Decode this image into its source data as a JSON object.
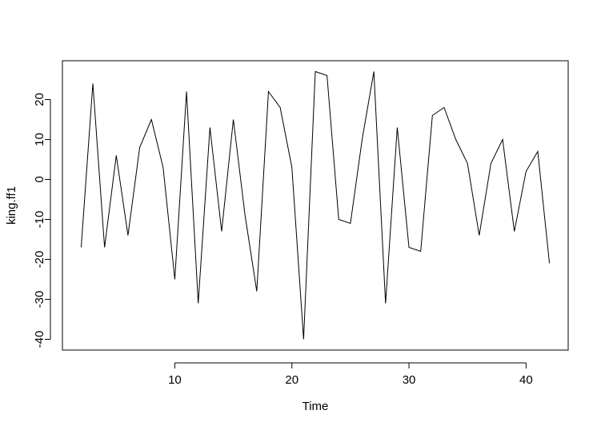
{
  "chart_data": {
    "type": "line",
    "title": "",
    "xlabel": "Time",
    "ylabel": "king.ff1",
    "x": [
      2,
      3,
      4,
      5,
      6,
      7,
      8,
      9,
      10,
      11,
      12,
      13,
      14,
      15,
      16,
      17,
      18,
      19,
      20,
      21,
      22,
      23,
      24,
      25,
      26,
      27,
      28,
      29,
      30,
      31,
      32,
      33,
      34,
      35,
      36,
      37,
      38,
      39,
      40,
      41,
      42
    ],
    "series": [
      {
        "values": [
          -17,
          24,
          -17,
          6,
          -14,
          8,
          15,
          3,
          -25,
          22,
          -31,
          13,
          -13,
          15,
          -9,
          -28,
          22,
          18,
          3,
          -40,
          27,
          26,
          -10,
          -11,
          10,
          27,
          -31,
          13,
          -17,
          -18,
          16,
          18,
          10,
          4,
          -14,
          4,
          10,
          -13,
          2,
          7,
          -21
        ],
        "color": "#000000"
      }
    ],
    "xlim": [
      0.4,
      43.6
    ],
    "ylim": [
      -42.7,
      29.7
    ],
    "x_ticks": [
      10,
      20,
      30,
      40
    ],
    "x_tick_labels": [
      "10",
      "20",
      "30",
      "40"
    ],
    "y_ticks": [
      -40,
      -30,
      -20,
      -10,
      0,
      10,
      20
    ],
    "y_tick_labels": [
      "-40",
      "-30",
      "-20",
      "-10",
      "0",
      "10",
      "20"
    ],
    "grid": false,
    "legend": "none"
  }
}
